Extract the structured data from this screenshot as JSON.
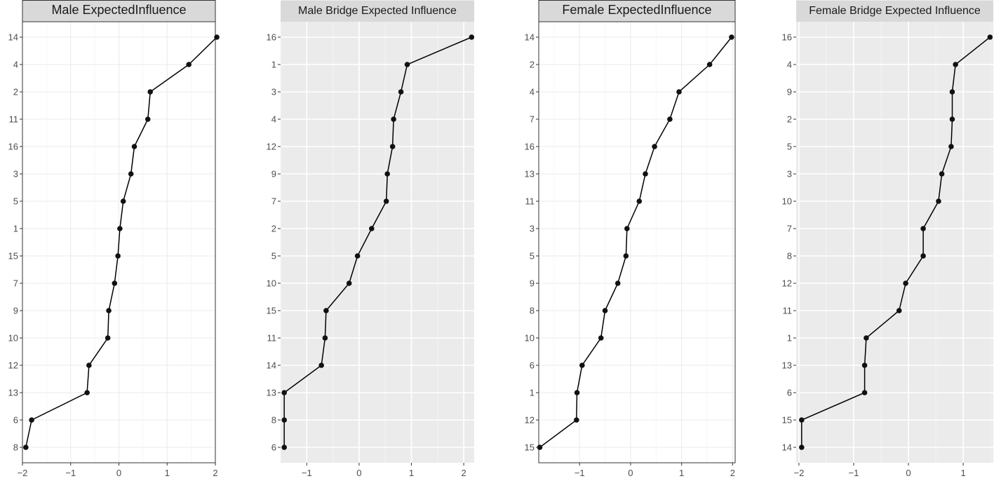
{
  "chart_data": [
    {
      "type": "line",
      "title": "Male ExpectedInfluence",
      "theme": "white-background-grey-grid",
      "xlim": [
        -2,
        2
      ],
      "x_ticks": [
        -2,
        -1,
        0,
        1,
        2
      ],
      "x_tick_labels": [
        "−2",
        "−1",
        "0",
        "1",
        "2"
      ],
      "categories": [
        "14",
        "4",
        "2",
        "11",
        "16",
        "3",
        "5",
        "1",
        "15",
        "7",
        "9",
        "10",
        "12",
        "13",
        "6",
        "8"
      ],
      "values": [
        2.03,
        1.45,
        0.65,
        0.6,
        0.32,
        0.25,
        0.09,
        0.02,
        -0.02,
        -0.09,
        -0.21,
        -0.23,
        -0.62,
        -0.66,
        -1.81,
        -1.93
      ]
    },
    {
      "type": "line",
      "title": "Male Bridge Expected Influence",
      "theme": "grey-background-white-grid",
      "xlim": [
        -1.5,
        2.2
      ],
      "x_ticks": [
        -1,
        0,
        1,
        2
      ],
      "x_tick_labels": [
        "−1",
        "0",
        "1",
        "2"
      ],
      "categories": [
        "16",
        "1",
        "3",
        "4",
        "12",
        "9",
        "7",
        "2",
        "5",
        "10",
        "15",
        "11",
        "14",
        "13",
        "8",
        "6"
      ],
      "values": [
        2.15,
        0.92,
        0.8,
        0.66,
        0.64,
        0.54,
        0.52,
        0.24,
        -0.03,
        -0.19,
        -0.63,
        -0.65,
        -0.72,
        -1.43,
        -1.43,
        -1.43
      ]
    },
    {
      "type": "line",
      "title": "Female ExpectedInfluence",
      "theme": "white-background-grey-grid",
      "xlim": [
        -1.8,
        2.05
      ],
      "x_ticks": [
        -1,
        0,
        1,
        2
      ],
      "x_tick_labels": [
        "−1",
        "0",
        "1",
        "2"
      ],
      "categories": [
        "14",
        "2",
        "4",
        "7",
        "16",
        "13",
        "11",
        "3",
        "5",
        "9",
        "8",
        "10",
        "6",
        "1",
        "12",
        "15"
      ],
      "values": [
        1.98,
        1.55,
        0.95,
        0.77,
        0.47,
        0.29,
        0.17,
        -0.07,
        -0.09,
        -0.25,
        -0.5,
        -0.58,
        -0.95,
        -1.05,
        -1.06,
        -1.78
      ]
    },
    {
      "type": "line",
      "title": "Female Bridge Expected Influence",
      "theme": "grey-background-white-grid",
      "xlim": [
        -2.05,
        1.55
      ],
      "x_ticks": [
        -2,
        -1,
        0,
        1
      ],
      "x_tick_labels": [
        "−2",
        "−1",
        "0",
        "1"
      ],
      "categories": [
        "16",
        "4",
        "9",
        "2",
        "5",
        "3",
        "10",
        "7",
        "8",
        "12",
        "11",
        "1",
        "13",
        "6",
        "15",
        "14"
      ],
      "values": [
        1.49,
        0.86,
        0.8,
        0.8,
        0.78,
        0.61,
        0.55,
        0.27,
        0.27,
        -0.05,
        -0.17,
        -0.77,
        -0.8,
        -0.8,
        -1.95,
        -1.95
      ]
    }
  ],
  "colors": {
    "line": "#000000",
    "point": "#111111",
    "strip_fill": "#d9d9d9",
    "strip_border": "#333333",
    "grey_panel": "#ebebeb",
    "white_grid_major": "#ebebeb",
    "white_grid_minor": "#f5f5f5",
    "tick_text": "#4d4d4d"
  }
}
